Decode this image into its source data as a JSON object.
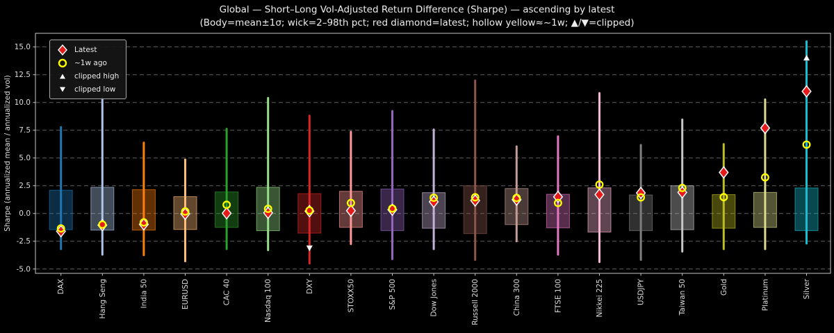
{
  "chart_data": {
    "type": "bar",
    "title": "Global — Short–Long Vol-Adjusted Return Difference (Sharpe) — ascending by latest",
    "subtitle": "(Body=mean±1σ; wick=2–98th pct; red diamond=latest; hollow yellow≈~1w; ▲/▼=clipped)",
    "ylabel": "Sharpe (annualized mean / annualized vol)",
    "ylim": [
      -5.39,
      16.23
    ],
    "yticks": [
      15.0,
      12.5,
      10.0,
      7.5,
      5.0,
      2.5,
      0.0,
      -2.5,
      -5.0
    ],
    "grid": "horizontal-dashed",
    "legend_position": "upper-left",
    "legend": [
      {
        "marker": "latest-diamond",
        "label": "Latest"
      },
      {
        "marker": "week-ago-circle",
        "label": "~1w ago"
      },
      {
        "marker": "clipped-high-triangle",
        "label": "clipped high"
      },
      {
        "marker": "clipped-low-triangle",
        "label": "clipped low"
      }
    ],
    "categories": [
      "DAX",
      "Hang Seng",
      "India 50",
      "EURUSD",
      "CAC 40",
      "Nasdaq 100",
      "DXY",
      "STOXX50",
      "S&P 500",
      "Dow Jones",
      "Russell 2000",
      "China 300",
      "FTSE 100",
      "Nikkei 225",
      "USDJPY",
      "Taiwan 50",
      "Gold",
      "Platinum",
      "Silver"
    ],
    "series": [
      {
        "name": "DAX",
        "color": "#1f77b4",
        "wick": [
          -3.2,
          7.78
        ],
        "box": [
          -1.46,
          2.1
        ],
        "latest": -1.6,
        "week_ago": -1.35
      },
      {
        "name": "Hang Seng",
        "color": "#aec7e8",
        "wick": [
          -3.7,
          10.4
        ],
        "box": [
          -1.5,
          2.36
        ],
        "latest": -1.05,
        "week_ago": -1.0
      },
      {
        "name": "India 50",
        "color": "#ff7f0e",
        "wick": [
          -3.75,
          6.38
        ],
        "box": [
          -1.5,
          2.15
        ],
        "latest": -0.98,
        "week_ago": -0.8
      },
      {
        "name": "EURUSD",
        "color": "#ffbb78",
        "wick": [
          -4.3,
          4.85
        ],
        "box": [
          -1.44,
          1.52
        ],
        "latest": -0.03,
        "week_ago": 0.18
      },
      {
        "name": "CAC 40",
        "color": "#2ca02c",
        "wick": [
          -3.2,
          7.62
        ],
        "box": [
          -1.25,
          1.94
        ],
        "latest": 0.02,
        "week_ago": 0.78
      },
      {
        "name": "Nasdaq 100",
        "color": "#98df8a",
        "wick": [
          -3.3,
          10.4
        ],
        "box": [
          -1.55,
          2.36
        ],
        "latest": 0.06,
        "week_ago": 0.42
      },
      {
        "name": "DXY",
        "color": "#d62728",
        "wick": [
          -4.5,
          8.8
        ],
        "box": [
          -1.77,
          1.79
        ],
        "latest": 0.21,
        "week_ago": 0.27,
        "clipped_low": -3.1
      },
      {
        "name": "STOXX50",
        "color": "#ff9896",
        "wick": [
          -2.75,
          7.36
        ],
        "box": [
          -1.25,
          2.0
        ],
        "latest": 0.25,
        "week_ago": 0.95
      },
      {
        "name": "S&P 500",
        "color": "#9467bd",
        "wick": [
          -4.1,
          9.22
        ],
        "box": [
          -1.54,
          2.21
        ],
        "latest": 0.34,
        "week_ago": 0.45
      },
      {
        "name": "Dow Jones",
        "color": "#c5b0d5",
        "wick": [
          -3.2,
          7.56
        ],
        "box": [
          -1.33,
          1.88
        ],
        "latest": 1.05,
        "week_ago": 1.42
      },
      {
        "name": "Russell 2000",
        "color": "#8c564b",
        "wick": [
          -4.17,
          11.97
        ],
        "box": [
          -1.81,
          2.5
        ],
        "latest": 1.17,
        "week_ago": 1.46
      },
      {
        "name": "China 300",
        "color": "#c49c94",
        "wick": [
          -2.5,
          6.04
        ],
        "box": [
          -1.0,
          2.25
        ],
        "latest": 1.25,
        "week_ago": 1.4
      },
      {
        "name": "FTSE 100",
        "color": "#e377c2",
        "wick": [
          -3.7,
          6.94
        ],
        "box": [
          -1.29,
          1.73
        ],
        "latest": 1.5,
        "week_ago": 0.95
      },
      {
        "name": "Nikkei 225",
        "color": "#f7b6d2",
        "wick": [
          -4.37,
          10.84
        ],
        "box": [
          -1.67,
          2.31
        ],
        "latest": 1.7,
        "week_ago": 2.6
      },
      {
        "name": "USDJPY",
        "color": "#7f7f7f",
        "wick": [
          -4.17,
          6.17
        ],
        "box": [
          -1.54,
          1.67
        ],
        "latest": 1.85,
        "week_ago": 1.45
      },
      {
        "name": "Taiwan 50",
        "color": "#c7c7c7",
        "wick": [
          -3.42,
          8.46
        ],
        "box": [
          -1.46,
          2.5
        ],
        "latest": 1.9,
        "week_ago": 2.3
      },
      {
        "name": "Gold",
        "color": "#bcbd22",
        "wick": [
          -3.2,
          6.25
        ],
        "box": [
          -1.33,
          1.7
        ],
        "latest": 3.7,
        "week_ago": 1.47
      },
      {
        "name": "Platinum",
        "color": "#dbdb8d",
        "wick": [
          -3.2,
          10.27
        ],
        "box": [
          -1.25,
          1.9
        ],
        "latest": 7.7,
        "week_ago": 3.25
      },
      {
        "name": "Silver",
        "color": "#17becf",
        "wick": [
          -2.7,
          15.5
        ],
        "box": [
          -1.54,
          2.3
        ],
        "latest": 11.0,
        "week_ago": 6.2,
        "clipped_high": 14.0
      }
    ],
    "style": {
      "background": "#000000",
      "frame_color": "#c8c8c8",
      "grid_color": "#5f5f5f",
      "tick_text_color": "#dcdcdc",
      "latest_marker_color": "#e51a1a",
      "latest_marker_edge": "#ffffff",
      "week_marker_color": "#ffff00",
      "clip_marker_color": "#ffffff",
      "box_fill_opacity": 0.38,
      "box_edge_opacity": 0.65
    }
  }
}
